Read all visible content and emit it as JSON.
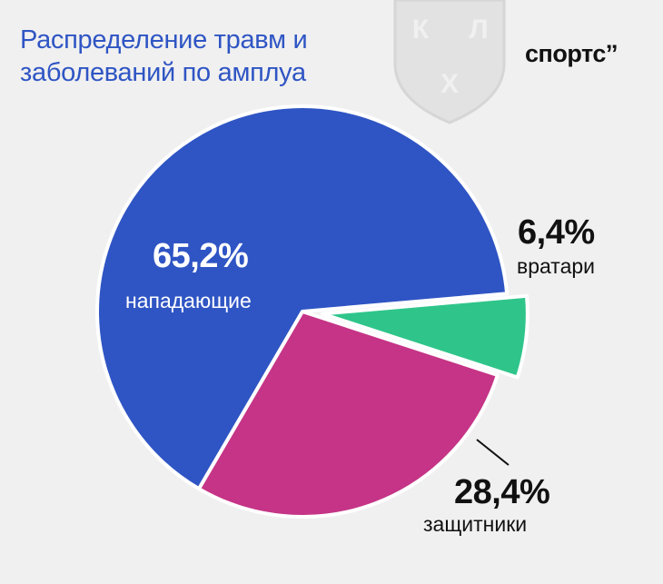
{
  "chart_data": {
    "type": "pie",
    "title": "Распределение травм и заболеваний по амплуа",
    "categories": [
      "нападающие",
      "вратари",
      "защитники"
    ],
    "values": [
      65.2,
      6.4,
      28.4
    ],
    "value_labels": [
      "65,2%",
      "6,4%",
      "28,4%"
    ],
    "colors": [
      "#2f55c4",
      "#2fc58a",
      "#c53486"
    ]
  },
  "brand": "спортс’’",
  "watermark": {
    "letters": [
      "К",
      "Л",
      "Х"
    ]
  }
}
